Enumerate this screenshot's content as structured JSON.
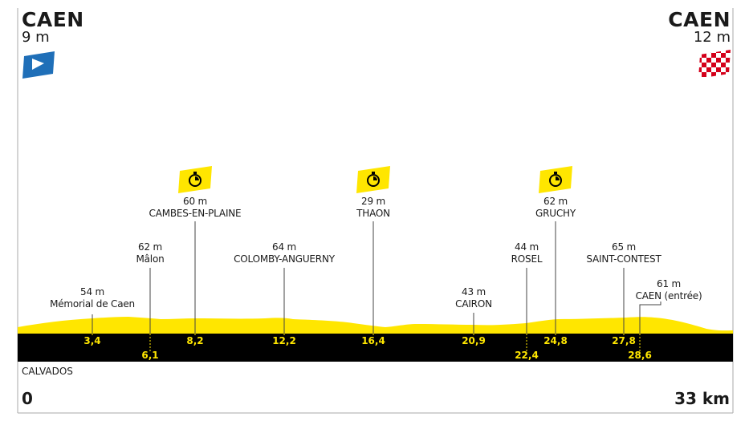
{
  "start": {
    "name": "CAEN",
    "altitude": "9 m"
  },
  "finish": {
    "name": "CAEN",
    "altitude": "12 m"
  },
  "region": "CALVADOS",
  "distance": {
    "start": "0",
    "end": "33 km"
  },
  "colors": {
    "profile": "#ffe600",
    "band": "#000000",
    "start_flag": "#1f6fb8",
    "finish_flag": "#d4001a"
  },
  "points": [
    {
      "altitude": "54 m",
      "name": "Mémorial de Caen",
      "km": "3,4",
      "timecheck": false
    },
    {
      "altitude": "62 m",
      "name": "Mâlon",
      "km": "6,1",
      "timecheck": false
    },
    {
      "altitude": "60 m",
      "name": "CAMBES-EN-PLAINE",
      "km": "8,2",
      "timecheck": true
    },
    {
      "altitude": "64 m",
      "name": "COLOMBY-ANGUERNY",
      "km": "12,2",
      "timecheck": false
    },
    {
      "altitude": "29 m",
      "name": "THAON",
      "km": "16,4",
      "timecheck": true
    },
    {
      "altitude": "43 m",
      "name": "CAIRON",
      "km": "20,9",
      "timecheck": false
    },
    {
      "altitude": "44 m",
      "name": "ROSEL",
      "km": "22,4",
      "timecheck": false
    },
    {
      "altitude": "62 m",
      "name": "GRUCHY",
      "km": "24,8",
      "timecheck": true
    },
    {
      "altitude": "65 m",
      "name": "SAINT-CONTEST",
      "km": "27,8",
      "timecheck": false
    },
    {
      "altitude": "61 m",
      "name": "CAEN (entrée)",
      "km": "28,6",
      "timecheck": false
    }
  ]
}
